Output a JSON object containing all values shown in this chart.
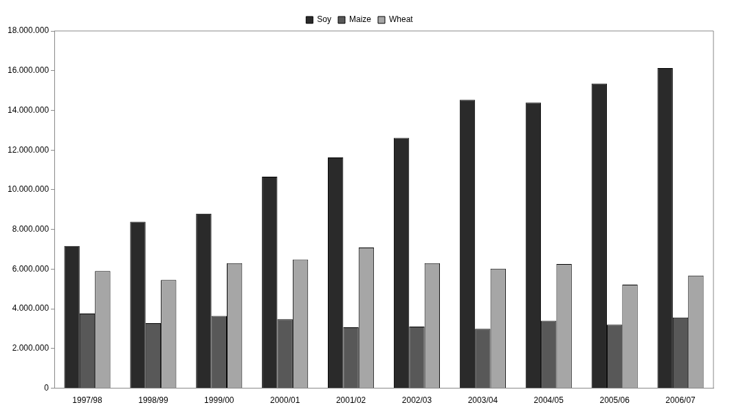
{
  "chart_data": {
    "type": "bar",
    "categories": [
      "1997/98",
      "1998/99",
      "1999/00",
      "2000/01",
      "2001/02",
      "2002/03",
      "2003/04",
      "2004/05",
      "2005/06",
      "2006/07"
    ],
    "series": [
      {
        "name": "Soy",
        "color": "#2a2a2a",
        "values": [
          7170000,
          8390000,
          8790000,
          10660000,
          11630000,
          12610000,
          14530000,
          14390000,
          15350000,
          16130000
        ]
      },
      {
        "name": "Maize",
        "color": "#585858",
        "values": [
          3760000,
          3280000,
          3640000,
          3480000,
          3070000,
          3100000,
          2990000,
          3400000,
          3200000,
          3560000
        ]
      },
      {
        "name": "Wheat",
        "color": "#a6a6a6",
        "values": [
          5900000,
          5450000,
          6300000,
          6480000,
          7090000,
          6300000,
          6020000,
          6260000,
          5220000,
          5680000
        ]
      }
    ],
    "ylim": [
      0,
      18000000
    ],
    "yticks": [
      0,
      {
        "value": 2000000,
        "label": "2.000.000"
      },
      {
        "value": 4000000,
        "label": "4.000.000"
      },
      {
        "value": 6000000,
        "label": "6.000.000"
      },
      {
        "value": 8000000,
        "label": "8.000.000"
      },
      {
        "value": 10000000,
        "label": "10.000.000"
      },
      {
        "value": 12000000,
        "label": "12.000.000"
      },
      {
        "value": 14000000,
        "label": "14.000.000"
      },
      {
        "value": 16000000,
        "label": "16.000.000"
      },
      {
        "value": 18000000,
        "label": "18.000.000"
      }
    ],
    "grid": false,
    "legend": "top"
  }
}
